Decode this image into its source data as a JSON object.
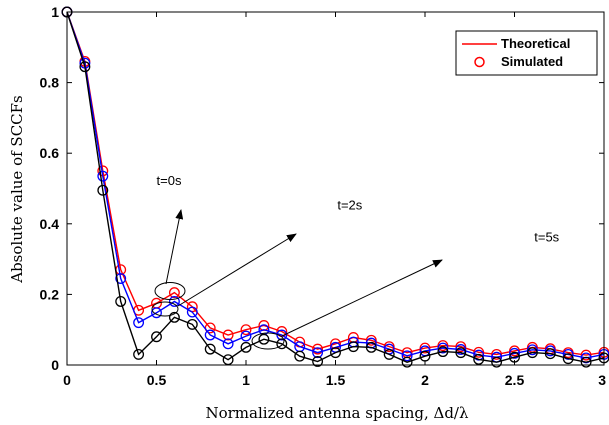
{
  "chart_data": {
    "type": "line",
    "title": "",
    "xlabel": "Normalized antenna spacing, Δd/λ",
    "ylabel": "Absolute value of SCCFs",
    "xlim": [
      0,
      3
    ],
    "ylim": [
      0,
      1
    ],
    "xticks": [
      0,
      0.5,
      1,
      1.5,
      2,
      2.5,
      3
    ],
    "yticks": [
      0,
      0.2,
      0.4,
      0.6,
      0.8,
      1
    ],
    "xtick_labels": [
      "0",
      "0.5",
      "1",
      "1.5",
      "2",
      "2.5",
      "3"
    ],
    "ytick_labels": [
      "0",
      "0.2",
      "0.4",
      "0.6",
      "0.8",
      "1"
    ],
    "grid": false,
    "legend": {
      "placement": "top-right",
      "entries": [
        {
          "label": "Theoretical",
          "marker": "line",
          "color": "#ff0000"
        },
        {
          "label": "Simulated",
          "marker": "circle",
          "color": "#ff0000"
        }
      ]
    },
    "x": [
      0,
      0.1,
      0.2,
      0.3,
      0.4,
      0.5,
      0.6,
      0.7,
      0.8,
      0.9,
      1.0,
      1.1,
      1.2,
      1.3,
      1.4,
      1.5,
      1.6,
      1.7,
      1.8,
      1.9,
      2.0,
      2.1,
      2.2,
      2.3,
      2.4,
      2.5,
      2.6,
      2.7,
      2.8,
      2.9,
      3.0
    ],
    "series": [
      {
        "color": "#ff0000",
        "values": [
          1.0,
          0.86,
          0.55,
          0.27,
          0.155,
          0.175,
          0.205,
          0.165,
          0.105,
          0.085,
          0.1,
          0.112,
          0.095,
          0.065,
          0.045,
          0.06,
          0.078,
          0.07,
          0.052,
          0.035,
          0.048,
          0.055,
          0.052,
          0.036,
          0.03,
          0.04,
          0.05,
          0.046,
          0.035,
          0.028,
          0.036
        ]
      },
      {
        "color": "#0000ff",
        "values": [
          1.0,
          0.855,
          0.535,
          0.245,
          0.12,
          0.148,
          0.18,
          0.15,
          0.085,
          0.06,
          0.082,
          0.1,
          0.085,
          0.052,
          0.035,
          0.05,
          0.065,
          0.062,
          0.045,
          0.026,
          0.04,
          0.048,
          0.044,
          0.028,
          0.022,
          0.033,
          0.043,
          0.04,
          0.03,
          0.02,
          0.03
        ]
      },
      {
        "color": "#000000",
        "values": [
          1.0,
          0.845,
          0.495,
          0.18,
          0.03,
          0.08,
          0.135,
          0.115,
          0.045,
          0.015,
          0.05,
          0.073,
          0.06,
          0.025,
          0.01,
          0.035,
          0.052,
          0.05,
          0.03,
          0.008,
          0.025,
          0.038,
          0.035,
          0.016,
          0.008,
          0.022,
          0.035,
          0.032,
          0.018,
          0.008,
          0.02
        ]
      }
    ],
    "annotations": [
      {
        "text": "t=0s",
        "x": 0.57,
        "y": 0.51
      },
      {
        "text": "t=2s",
        "x": 1.58,
        "y": 0.44
      },
      {
        "text": "t=5s",
        "x": 2.68,
        "y": 0.35
      }
    ]
  }
}
